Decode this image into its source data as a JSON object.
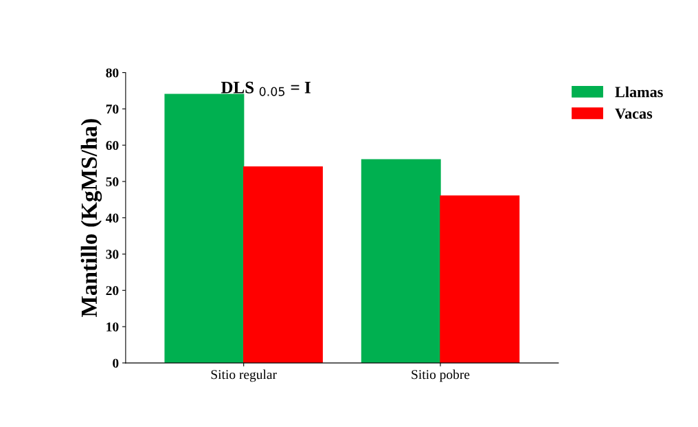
{
  "chart_data": {
    "type": "bar",
    "ylabel": "Mantillo (KgMS/ha)",
    "categories": [
      "Sitio regular",
      "Sitio pobre"
    ],
    "series": [
      {
        "name": "Llamas",
        "color": "#00b050",
        "values": [
          74,
          56
        ]
      },
      {
        "name": "Vacas",
        "color": "#ff0000",
        "values": [
          54,
          46
        ]
      }
    ],
    "ylim": [
      0,
      80
    ],
    "yticks": [
      0,
      10,
      20,
      30,
      40,
      50,
      60,
      70,
      80
    ],
    "annotations": [
      "DLS $_{0.05}$ = I"
    ],
    "grid": false,
    "legend": "top right"
  }
}
